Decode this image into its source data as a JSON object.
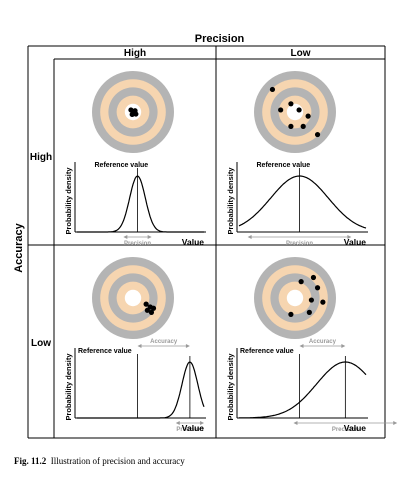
{
  "figure": {
    "header_precision": "Precision",
    "header_accuracy": "Accuracy",
    "col_high": "High",
    "col_low": "Low",
    "row_high": "High",
    "row_low": "Low",
    "caption_label": "Fig. 11.2",
    "caption_text": "Illustration of precision and accuracy"
  },
  "panels": [
    {
      "id": "high-accuracy-high-precision",
      "hits": [
        [
          -0.05,
          -0.05
        ],
        [
          0.05,
          -0.03
        ],
        [
          -0.02,
          0.06
        ],
        [
          0.07,
          0.05
        ],
        [
          0.0,
          0.0
        ]
      ],
      "curve": {
        "mean": 0,
        "sd": 0.06
      },
      "ylabel": "Probability density",
      "reference_label": "Reference value",
      "precision_label": "Precision",
      "xlabel": "Value",
      "accuracy_label": ""
    },
    {
      "id": "high-accuracy-low-precision",
      "hits": [
        [
          -0.55,
          -0.55
        ],
        [
          -0.35,
          -0.05
        ],
        [
          -0.1,
          -0.2
        ],
        [
          0.1,
          -0.05
        ],
        [
          0.32,
          0.1
        ],
        [
          -0.1,
          0.35
        ],
        [
          0.2,
          0.35
        ],
        [
          0.55,
          0.55
        ]
      ],
      "curve": {
        "mean": 0,
        "sd": 0.22
      },
      "ylabel": "Probability density",
      "reference_label": "Reference value",
      "precision_label": "Precision",
      "xlabel": "Value",
      "accuracy_label": ""
    },
    {
      "id": "low-accuracy-high-precision",
      "hits": [
        [
          0.32,
          0.15
        ],
        [
          0.42,
          0.22
        ],
        [
          0.5,
          0.25
        ],
        [
          0.35,
          0.3
        ],
        [
          0.45,
          0.35
        ]
      ],
      "curve": {
        "mean": 0.4,
        "sd": 0.06
      },
      "ylabel": "Probability density",
      "reference_label": "Reference value",
      "precision_label": "Precision",
      "xlabel": "Value",
      "accuracy_label": "Accuracy"
    },
    {
      "id": "low-accuracy-low-precision",
      "hits": [
        [
          0.15,
          -0.4
        ],
        [
          0.45,
          -0.5
        ],
        [
          0.55,
          -0.25
        ],
        [
          0.68,
          0.1
        ],
        [
          0.4,
          0.05
        ],
        [
          0.35,
          0.35
        ],
        [
          -0.1,
          0.4
        ]
      ],
      "curve": {
        "mean": 0.35,
        "sd": 0.22
      },
      "ylabel": "Probability density",
      "reference_label": "Reference value",
      "precision_label": "Precision",
      "xlabel": "Value",
      "accuracy_label": "Accuracy"
    }
  ],
  "colors": {
    "ring_grey": "#b4b4b4",
    "ring_peach": "#f6d5b0",
    "bullseye": "#ffffff",
    "hit": "#000000",
    "faint": "#9a9a9a",
    "grid_line": "#000000"
  }
}
